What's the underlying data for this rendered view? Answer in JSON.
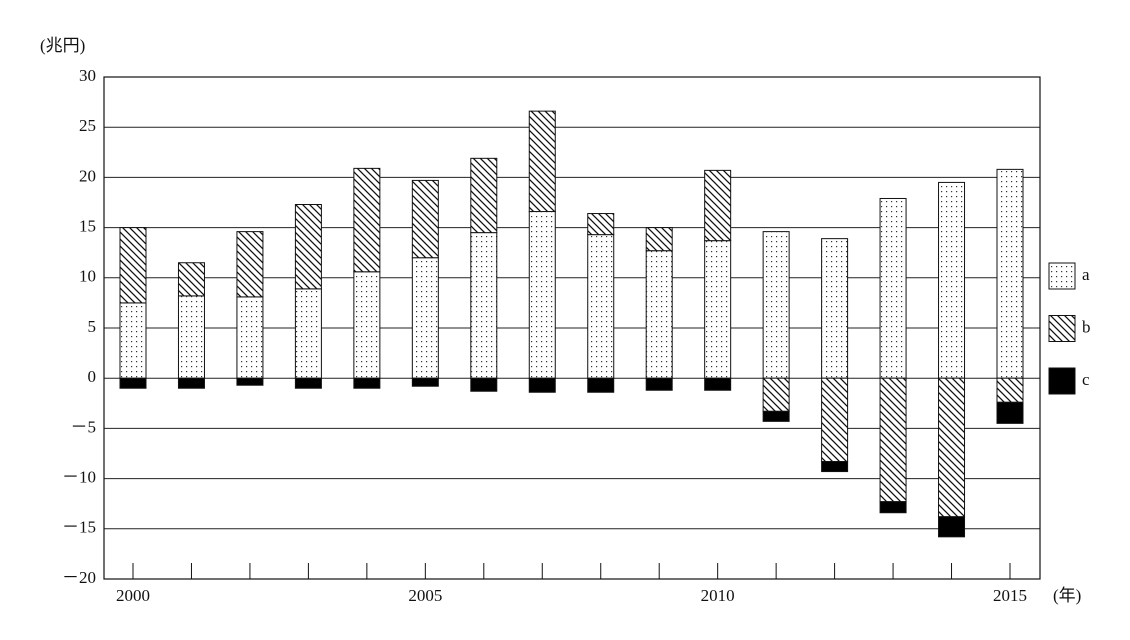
{
  "chart_data": {
    "type": "stacked-bar",
    "y_label": "(兆円)",
    "x_label": "(年)",
    "categories": [
      "2000",
      null,
      null,
      null,
      null,
      "2005",
      null,
      null,
      null,
      null,
      "2010",
      null,
      null,
      null,
      null,
      "2015"
    ],
    "series": [
      {
        "name": "a",
        "color": "#000000",
        "pattern": "dots",
        "values": [
          7.5,
          8.2,
          8.1,
          8.9,
          10.6,
          12.0,
          14.5,
          16.6,
          14.3,
          12.7,
          13.7,
          14.6,
          13.9,
          17.9,
          19.5,
          20.8
        ]
      },
      {
        "name": "b",
        "color": "#000000",
        "pattern": "hatch",
        "values": [
          7.5,
          3.3,
          6.5,
          8.4,
          10.3,
          7.7,
          7.4,
          10.0,
          2.1,
          2.3,
          7.0,
          -3.3,
          -8.3,
          -12.3,
          -13.8,
          -2.4
        ]
      },
      {
        "name": "c",
        "color": "#000000",
        "pattern": "solid",
        "values": [
          -1.0,
          -1.0,
          -0.7,
          -1.0,
          -1.0,
          -0.8,
          -1.3,
          -1.4,
          -1.4,
          -1.2,
          -1.2,
          -1.0,
          -1.0,
          -1.1,
          -2.0,
          -2.1
        ]
      }
    ],
    "ylim": [
      -20,
      30
    ],
    "yticks": [
      {
        "value": -20,
        "label": "－20"
      },
      {
        "value": -15,
        "label": "－15"
      },
      {
        "value": -10,
        "label": "－10"
      },
      {
        "value": -5,
        "label": "－5"
      },
      0,
      5,
      10,
      15,
      20,
      25,
      30
    ],
    "grid": true,
    "legend": "right"
  }
}
